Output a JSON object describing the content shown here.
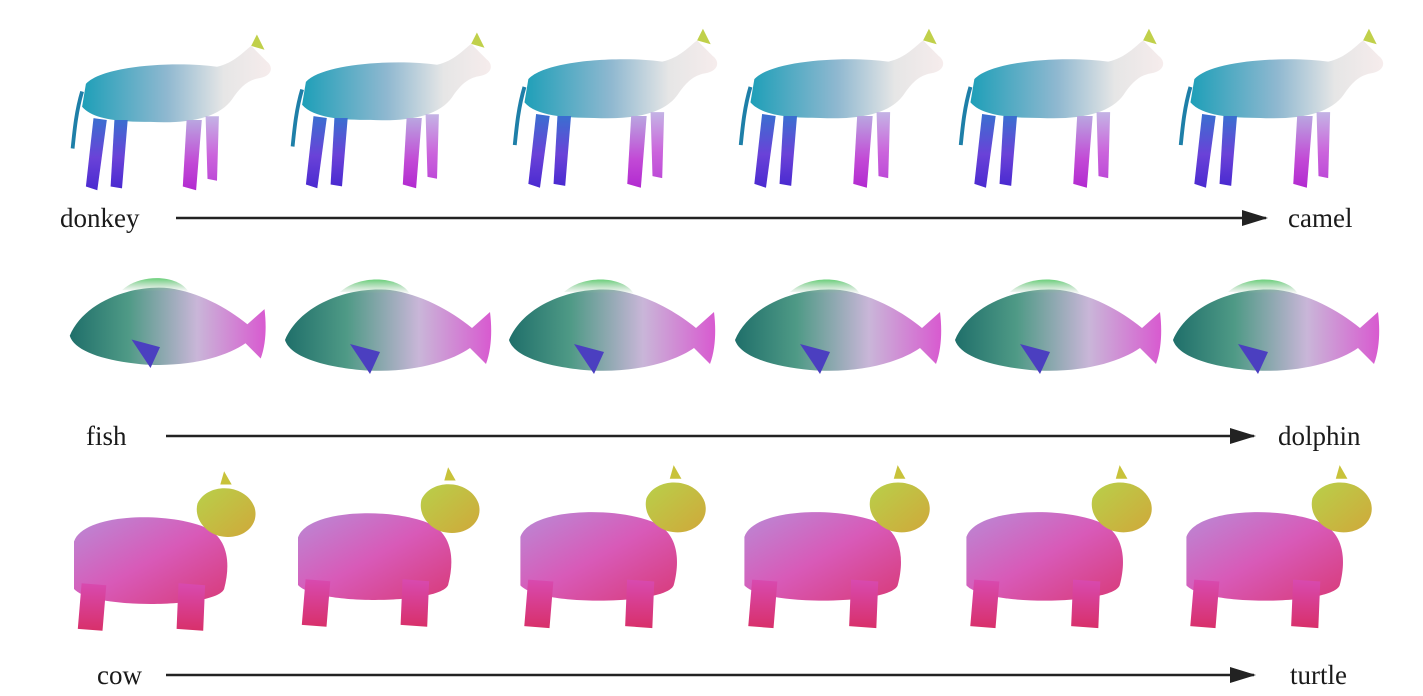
{
  "figure": {
    "rows": [
      {
        "id": "donkey-camel",
        "source": "donkey",
        "target": "camel",
        "steps": 6,
        "palette": [
          "#1e9fb8",
          "#4f44d6",
          "#b832d2",
          "#f1ecea"
        ]
      },
      {
        "id": "fish-dolphin",
        "source": "fish",
        "target": "dolphin",
        "steps": 6,
        "palette": [
          "#1f6f6a",
          "#5aa070",
          "#c64fc6",
          "#f0e8f0"
        ]
      },
      {
        "id": "cow-turtle",
        "source": "cow",
        "target": "turtle",
        "steps": 6,
        "palette": [
          "#d64ab8",
          "#e0327a",
          "#c8c23a",
          "#a07ad6"
        ]
      }
    ]
  }
}
